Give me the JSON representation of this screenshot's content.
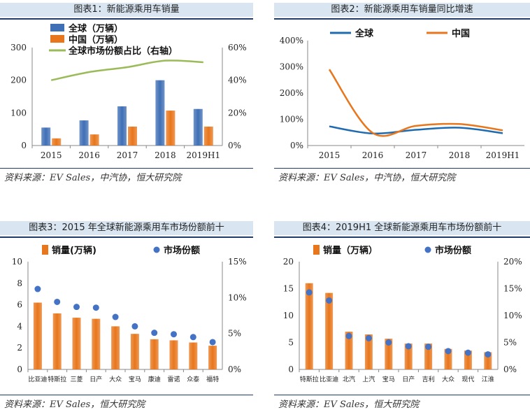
{
  "colors": {
    "blue": "#3f6fb5",
    "orange": "#e8761c",
    "green": "#9bbb59",
    "dot": "#4472c4",
    "axis": "#888888"
  },
  "panels": [
    {
      "title": "图表1：新能源乘用车销量",
      "source": "资料来源：EV Sales，中汽协，恒大研究院"
    },
    {
      "title": "图表2：新能源乘用车销量同比增速",
      "source": "资料来源：EV Sales，中汽协，恒大研究院"
    },
    {
      "title": "图表3：2015 年全球新能源乘用车市场份额前十",
      "source": "资料来源：EV Sales，恒大研究院"
    },
    {
      "title": "图表4：2019H1 全球新能源乘用车市场份额前十",
      "source": "资料来源：EV Sales，恒大研究院"
    }
  ],
  "chart_data": [
    {
      "type": "bar",
      "title": "图表1：新能源乘用车销量",
      "categories": [
        "2015",
        "2016",
        "2017",
        "2018",
        "2019H1"
      ],
      "series": [
        {
          "name": "全球（万辆）",
          "kind": "bar",
          "axis": "left",
          "values": [
            55,
            77,
            120,
            200,
            112
          ]
        },
        {
          "name": "中国（万辆）",
          "kind": "bar",
          "axis": "left",
          "values": [
            22,
            34,
            58,
            107,
            58
          ]
        },
        {
          "name": "全球市场份额占比（右轴）",
          "kind": "line",
          "axis": "right",
          "values": [
            40,
            45,
            48,
            52,
            51
          ]
        }
      ],
      "ylim": [
        0,
        300
      ],
      "yticks": [
        "0",
        "100",
        "200",
        "300"
      ],
      "y2lim": [
        0,
        60
      ],
      "y2ticks": [
        "0%",
        "20%",
        "40%",
        "60%"
      ]
    },
    {
      "type": "line",
      "title": "图表2：新能源乘用车销量同比增速",
      "categories": [
        "2015",
        "2016",
        "2017",
        "2018",
        "2019H1"
      ],
      "series": [
        {
          "name": "全球",
          "values": [
            73,
            46,
            60,
            68,
            47
          ]
        },
        {
          "name": "中国",
          "values": [
            290,
            48,
            75,
            82,
            58
          ]
        }
      ],
      "ylim": [
        0,
        400
      ],
      "yticks": [
        "0%",
        "100%",
        "200%",
        "300%",
        "400%"
      ]
    },
    {
      "type": "bar",
      "title": "图表3：2015 年全球新能源乘用车市场份额前十",
      "categories": [
        "比亚迪",
        "特斯拉",
        "三菱",
        "日产",
        "大众",
        "宝马",
        "康迪",
        "雷诺",
        "众泰",
        "福特"
      ],
      "series": [
        {
          "name": "销量(万辆)",
          "kind": "bar",
          "axis": "left",
          "values": [
            6.2,
            5.2,
            4.8,
            4.7,
            4.0,
            3.3,
            2.8,
            2.7,
            2.5,
            2.2
          ]
        },
        {
          "name": "市场份额",
          "kind": "dot",
          "axis": "right",
          "values": [
            11.2,
            9.4,
            8.7,
            8.6,
            7.3,
            6.0,
            5.1,
            4.9,
            4.5,
            3.8
          ]
        }
      ],
      "ylim": [
        0,
        10
      ],
      "yticks": [
        "0",
        "2",
        "4",
        "6",
        "8",
        "10"
      ],
      "y2lim": [
        0,
        15
      ],
      "y2ticks": [
        "0%",
        "5%",
        "10%",
        "15%"
      ]
    },
    {
      "type": "bar",
      "title": "图表4：2019H1 全球新能源乘用车市场份额前十",
      "categories": [
        "特斯拉",
        "比亚迪",
        "北汽",
        "上汽",
        "宝马",
        "日产",
        "吉利",
        "大众",
        "现代",
        "江淮"
      ],
      "series": [
        {
          "name": "销量（万辆）",
          "kind": "bar",
          "axis": "left",
          "values": [
            16.0,
            14.2,
            7.0,
            6.5,
            5.7,
            4.8,
            4.8,
            3.8,
            3.5,
            3.2
          ]
        },
        {
          "name": "市场份额",
          "kind": "dot",
          "axis": "right",
          "values": [
            14.3,
            12.8,
            6.2,
            5.8,
            5.0,
            4.3,
            4.2,
            3.4,
            3.1,
            2.8
          ]
        }
      ],
      "ylim": [
        0,
        20
      ],
      "yticks": [
        "0",
        "5",
        "10",
        "15",
        "20"
      ],
      "y2lim": [
        0,
        20
      ],
      "y2ticks": [
        "0%",
        "5%",
        "10%",
        "15%",
        "20%"
      ]
    }
  ]
}
